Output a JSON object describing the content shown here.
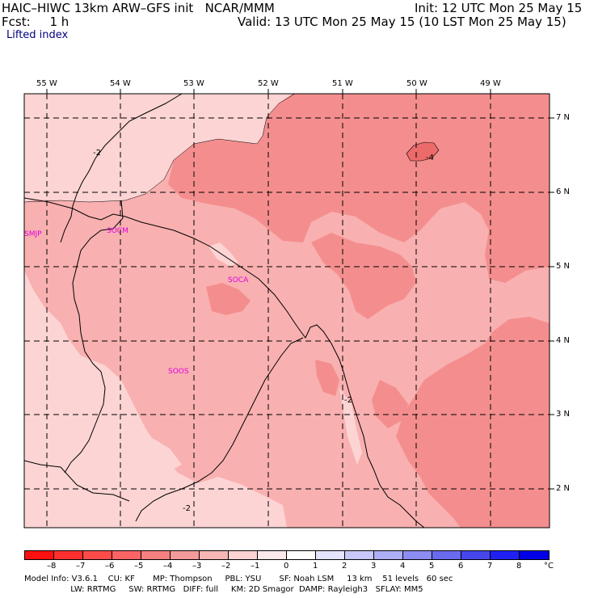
{
  "header": {
    "title": "HAIC–HIWC 13km ARW–GFS init   NCAR/MMM",
    "init": "Init: 12 UTC Mon 25 May 15",
    "fcst": "Fcst:     1 h",
    "valid": "Valid: 13 UTC Mon 25 May 15 (10 LST Mon 25 May 15)",
    "field": "Lifted index"
  },
  "map": {
    "lon_labels": [
      "55 W",
      "54 W",
      "53 W",
      "52 W",
      "51 W",
      "50 W",
      "49 W"
    ],
    "lat_labels": [
      "7 N",
      "6 N",
      "5 N",
      "4 N",
      "3 N",
      "2 N"
    ],
    "stations": [
      "SMJP",
      "SOCM",
      "SOCA",
      "SOOS"
    ],
    "contour_labels": [
      "-2",
      "-4",
      "-2",
      "-2"
    ],
    "colors": {
      "level_-1": "#fcd4d4",
      "level_-2": "#f9b0b0",
      "level_-3": "#f48e8e",
      "level_-4": "#ec6a6a",
      "border": "#000000",
      "grid": "#000000",
      "station": "#e000e0"
    }
  },
  "colorbar": {
    "ticks": [
      "–8",
      "–7",
      "–6",
      "–5",
      "–4",
      "–3",
      "–2",
      "–1",
      "0",
      "1",
      "2",
      "3",
      "4",
      "5",
      "6",
      "7",
      "8"
    ],
    "unit": "°C",
    "colors": [
      "#ff1010",
      "#ff2f2f",
      "#ff4a4a",
      "#fb6464",
      "#f68080",
      "#f49a9a",
      "#f7b6b6",
      "#fbd3d3",
      "#fde9e9",
      "#ffffff",
      "#e4e4ff",
      "#c8c8fb",
      "#aeaef6",
      "#8c8cf2",
      "#6a6aee",
      "#4646ec",
      "#2020f0",
      "#0000e6"
    ]
  },
  "footer": {
    "line1": "Model Info: V3.6.1    CU: KF       MP: Thompson     PBL: YSU       SF: Noah LSM     13 km    51 levels   60 sec",
    "line2": "                  LW: RRTMG     SW: RRTMG   DIFF: full     KM: 2D Smagor  DAMP: Rayleigh3   SFLAY: MM5"
  }
}
